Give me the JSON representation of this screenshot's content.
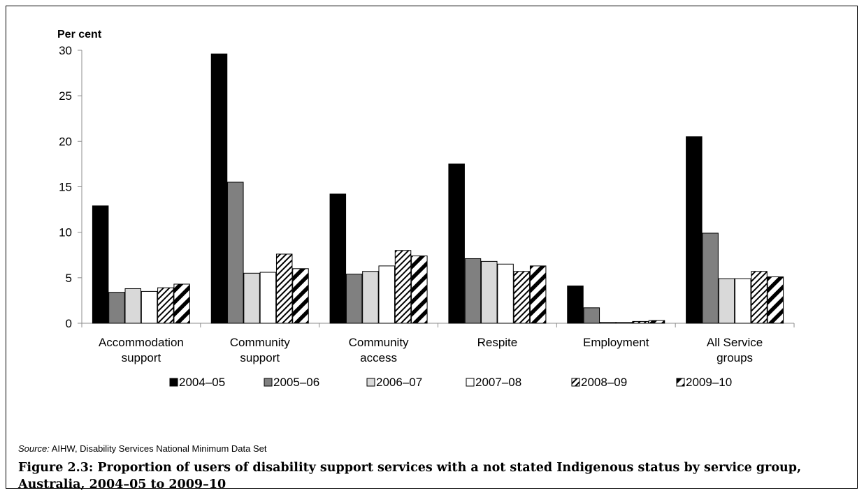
{
  "chart_data": {
    "type": "bar",
    "ylabel": "Per cent",
    "ylim": [
      0,
      30
    ],
    "yticks": [
      0,
      5,
      10,
      15,
      20,
      25,
      30
    ],
    "categories": [
      [
        "Accommodation",
        "support"
      ],
      [
        "Community",
        "support"
      ],
      [
        "Community",
        "access"
      ],
      [
        "Respite"
      ],
      [
        "Employment"
      ],
      [
        "All Service",
        "groups"
      ]
    ],
    "series": [
      {
        "name": "2004–05",
        "fill": "#000000",
        "pattern": "solid",
        "values": [
          12.9,
          29.6,
          14.2,
          17.5,
          4.1,
          20.5
        ]
      },
      {
        "name": "2005–06",
        "fill": "#808080",
        "pattern": "solid",
        "values": [
          3.4,
          15.5,
          5.4,
          7.1,
          1.7,
          9.9
        ]
      },
      {
        "name": "2006–07",
        "fill": "#d9d9d9",
        "pattern": "solid",
        "values": [
          3.8,
          5.5,
          5.7,
          6.8,
          0.1,
          4.9
        ]
      },
      {
        "name": "2007–08",
        "fill": "#ffffff",
        "pattern": "solid",
        "values": [
          3.5,
          5.6,
          6.3,
          6.5,
          0.1,
          4.9
        ]
      },
      {
        "name": "2008–09",
        "fill": "#ffffff",
        "pattern": "fine-diagonal",
        "values": [
          3.9,
          7.6,
          8.0,
          5.7,
          0.2,
          5.7
        ]
      },
      {
        "name": "2009–10",
        "fill": "#ffffff",
        "pattern": "wide-diagonal",
        "values": [
          4.3,
          6.0,
          7.4,
          6.3,
          0.3,
          5.1
        ]
      }
    ],
    "legend": "bottom",
    "grid": false
  },
  "source": {
    "label": "Source:",
    "text": "AIHW, Disability Services National Minimum Data Set"
  },
  "caption": "Figure 2.3: Proportion of users of disability support services with a not stated Indigenous status by service group, Australia, 2004–05 to 2009–10"
}
